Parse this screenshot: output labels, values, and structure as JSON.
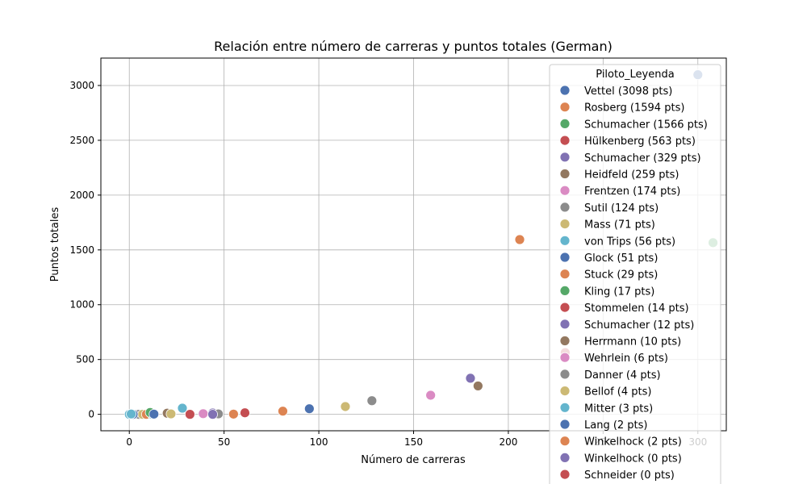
{
  "chart_data": {
    "type": "scatter",
    "title": "Relación entre número de carreras y puntos totales (German)",
    "xlabel": "Número de carreras",
    "ylabel": "Puntos totales",
    "xlim": [
      -15,
      315
    ],
    "ylim": [
      -150,
      3250
    ],
    "xticks": [
      0,
      50,
      100,
      150,
      200,
      250,
      300
    ],
    "yticks": [
      0,
      500,
      1000,
      1500,
      2000,
      2500,
      3000
    ],
    "grid": true,
    "legend": {
      "title": "Piloto_Leyenda",
      "placement": "top-right"
    },
    "series": [
      {
        "name": "Vettel (3098 pts)",
        "color": "#4c72b0",
        "points": [
          {
            "x": 300,
            "y": 3098
          }
        ]
      },
      {
        "name": "Rosberg (1594 pts)",
        "color": "#dd8452",
        "points": [
          {
            "x": 206,
            "y": 1594
          }
        ]
      },
      {
        "name": "Schumacher (1566 pts)",
        "color": "#55a868",
        "points": [
          {
            "x": 308,
            "y": 1566
          }
        ]
      },
      {
        "name": "Hülkenberg (563 pts)",
        "color": "#c44e52",
        "points": [
          {
            "x": 230,
            "y": 563
          }
        ]
      },
      {
        "name": "Schumacher (329 pts)",
        "color": "#8172b3",
        "points": [
          {
            "x": 180,
            "y": 329
          }
        ]
      },
      {
        "name": "Heidfeld (259 pts)",
        "color": "#937860",
        "points": [
          {
            "x": 184,
            "y": 259
          }
        ]
      },
      {
        "name": "Frentzen (174 pts)",
        "color": "#da8bc3",
        "points": [
          {
            "x": 159,
            "y": 174
          }
        ]
      },
      {
        "name": "Sutil (124 pts)",
        "color": "#8c8c8c",
        "points": [
          {
            "x": 128,
            "y": 124
          }
        ]
      },
      {
        "name": "Mass (71 pts)",
        "color": "#ccb974",
        "points": [
          {
            "x": 114,
            "y": 71
          }
        ]
      },
      {
        "name": "von Trips (56 pts)",
        "color": "#64b5cd",
        "points": [
          {
            "x": 28,
            "y": 56
          }
        ]
      },
      {
        "name": "Glock (51 pts)",
        "color": "#4c72b0",
        "points": [
          {
            "x": 95,
            "y": 51
          }
        ]
      },
      {
        "name": "Stuck (29 pts)",
        "color": "#dd8452",
        "points": [
          {
            "x": 81,
            "y": 29
          }
        ]
      },
      {
        "name": "Kling (17 pts)",
        "color": "#55a868",
        "points": [
          {
            "x": 11,
            "y": 17
          }
        ]
      },
      {
        "name": "Stommelen (14 pts)",
        "color": "#c44e52",
        "points": [
          {
            "x": 61,
            "y": 14
          }
        ]
      },
      {
        "name": "Schumacher (12 pts)",
        "color": "#8172b3",
        "points": [
          {
            "x": 44,
            "y": 12
          }
        ]
      },
      {
        "name": "Herrmann (10 pts)",
        "color": "#937860",
        "points": [
          {
            "x": 20,
            "y": 10
          }
        ]
      },
      {
        "name": "Wehrlein (6 pts)",
        "color": "#da8bc3",
        "points": [
          {
            "x": 39,
            "y": 6
          }
        ]
      },
      {
        "name": "Danner (4 pts)",
        "color": "#8c8c8c",
        "points": [
          {
            "x": 47,
            "y": 4
          }
        ]
      },
      {
        "name": "Bellof (4 pts)",
        "color": "#ccb974",
        "points": [
          {
            "x": 22,
            "y": 4
          }
        ]
      },
      {
        "name": "Mitter (3 pts)",
        "color": "#64b5cd",
        "points": [
          {
            "x": 1,
            "y": 3
          }
        ]
      },
      {
        "name": "Lang (2 pts)",
        "color": "#4c72b0",
        "points": [
          {
            "x": 13,
            "y": 2
          }
        ]
      },
      {
        "name": "Winkelhock (2 pts)",
        "color": "#dd8452",
        "points": [
          {
            "x": 55,
            "y": 2
          }
        ]
      },
      {
        "name": "Winkelhock (0 pts)",
        "color": "#8172b3",
        "points": [
          {
            "x": 44,
            "y": 0
          }
        ]
      },
      {
        "name": "Schneider (0 pts)",
        "color": "#c44e52",
        "points": [
          {
            "x": 32,
            "y": 0
          }
        ]
      }
    ],
    "unlabeled_points": [
      {
        "x": 3,
        "y": 0,
        "color": "#ccb974"
      },
      {
        "x": 5,
        "y": 0,
        "color": "#8c8c8c"
      },
      {
        "x": 7,
        "y": 0,
        "color": "#ccb974"
      },
      {
        "x": 9,
        "y": 0,
        "color": "#dd8452"
      },
      {
        "x": 12,
        "y": 0,
        "color": "#64b5cd"
      },
      {
        "x": 13,
        "y": 0,
        "color": "#4c72b0"
      },
      {
        "x": 22,
        "y": 0,
        "color": "#ccb974"
      },
      {
        "x": 0,
        "y": 0,
        "color": "#64b5cd"
      },
      {
        "x": 2,
        "y": 0,
        "color": "#4c72b0"
      }
    ]
  }
}
